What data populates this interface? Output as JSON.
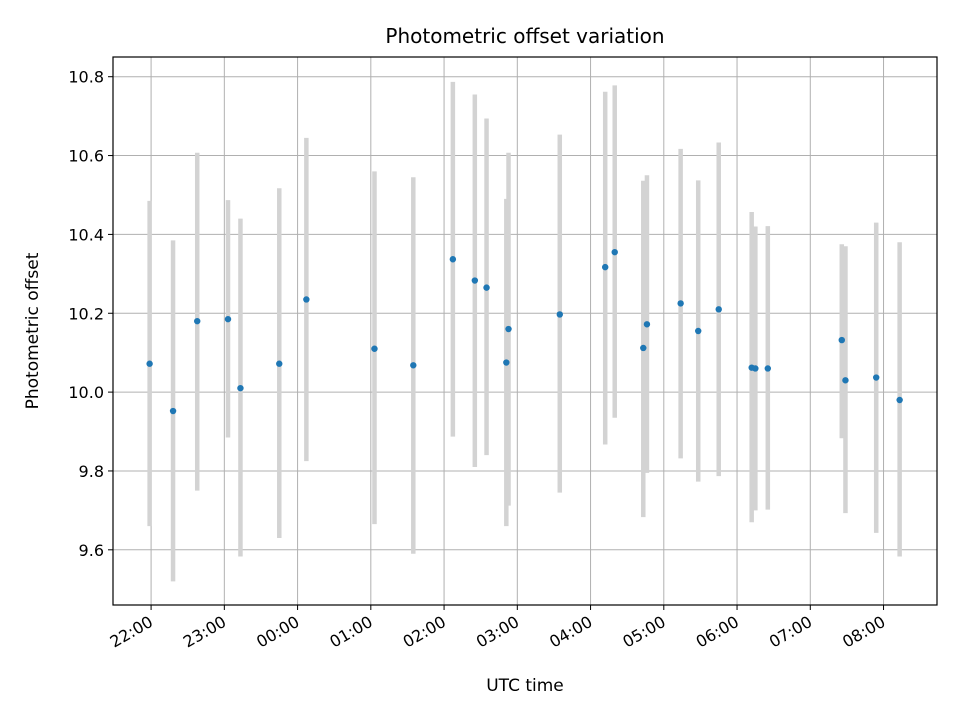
{
  "chart_data": {
    "type": "scatter",
    "title": "Photometric offset variation",
    "xlabel": "UTC time",
    "ylabel": "Photometric offset",
    "x_axis": {
      "unit": "hours",
      "range": [
        21.48,
        32.73
      ],
      "tick_values": [
        22,
        23,
        24,
        25,
        26,
        27,
        28,
        29,
        30,
        31,
        32
      ],
      "tick_labels": [
        "22:00",
        "23:00",
        "00:00",
        "01:00",
        "02:00",
        "03:00",
        "04:00",
        "05:00",
        "06:00",
        "07:00",
        "08:00"
      ]
    },
    "y_axis": {
      "range": [
        9.46,
        10.85
      ],
      "tick_values": [
        9.6,
        9.8,
        10.0,
        10.2,
        10.4,
        10.6,
        10.8
      ],
      "tick_labels": [
        "9.6",
        "9.8",
        "10.0",
        "10.2",
        "10.4",
        "10.6",
        "10.8"
      ]
    },
    "grid": true,
    "series": [
      {
        "marker_color": "#1f77b4",
        "errorbar_color": "#d3d3d3",
        "points": [
          {
            "x": 21.98,
            "y": 10.072,
            "low": 9.66,
            "high": 10.485
          },
          {
            "x": 22.3,
            "y": 9.952,
            "low": 9.52,
            "high": 10.385
          },
          {
            "x": 22.63,
            "y": 10.18,
            "low": 9.75,
            "high": 10.607
          },
          {
            "x": 23.05,
            "y": 10.185,
            "low": 9.885,
            "high": 10.487
          },
          {
            "x": 23.22,
            "y": 10.01,
            "low": 9.583,
            "high": 10.44
          },
          {
            "x": 23.75,
            "y": 10.072,
            "low": 9.63,
            "high": 10.517
          },
          {
            "x": 24.12,
            "y": 10.235,
            "low": 9.825,
            "high": 10.645
          },
          {
            "x": 25.05,
            "y": 10.11,
            "low": 9.665,
            "high": 10.56
          },
          {
            "x": 25.58,
            "y": 10.068,
            "low": 9.59,
            "high": 10.545
          },
          {
            "x": 26.12,
            "y": 10.337,
            "low": 9.887,
            "high": 10.787
          },
          {
            "x": 26.42,
            "y": 10.283,
            "low": 9.81,
            "high": 10.755
          },
          {
            "x": 26.58,
            "y": 10.265,
            "low": 9.84,
            "high": 10.694
          },
          {
            "x": 26.85,
            "y": 10.075,
            "low": 9.66,
            "high": 10.49
          },
          {
            "x": 26.88,
            "y": 10.16,
            "low": 9.712,
            "high": 10.607
          },
          {
            "x": 27.58,
            "y": 10.197,
            "low": 9.745,
            "high": 10.653
          },
          {
            "x": 28.2,
            "y": 10.317,
            "low": 9.867,
            "high": 10.762
          },
          {
            "x": 28.33,
            "y": 10.355,
            "low": 9.935,
            "high": 10.778
          },
          {
            "x": 28.72,
            "y": 10.112,
            "low": 9.683,
            "high": 10.536
          },
          {
            "x": 28.77,
            "y": 10.172,
            "low": 9.795,
            "high": 10.55
          },
          {
            "x": 29.23,
            "y": 10.225,
            "low": 9.832,
            "high": 10.617
          },
          {
            "x": 29.47,
            "y": 10.155,
            "low": 9.773,
            "high": 10.537
          },
          {
            "x": 29.75,
            "y": 10.21,
            "low": 9.787,
            "high": 10.633
          },
          {
            "x": 30.2,
            "y": 10.062,
            "low": 9.67,
            "high": 10.457
          },
          {
            "x": 30.25,
            "y": 10.06,
            "low": 9.7,
            "high": 10.42
          },
          {
            "x": 30.42,
            "y": 10.06,
            "low": 9.702,
            "high": 10.421
          },
          {
            "x": 31.43,
            "y": 10.132,
            "low": 9.883,
            "high": 10.375
          },
          {
            "x": 31.48,
            "y": 10.03,
            "low": 9.693,
            "high": 10.37
          },
          {
            "x": 31.9,
            "y": 10.037,
            "low": 9.643,
            "high": 10.43
          },
          {
            "x": 32.22,
            "y": 9.98,
            "low": 9.583,
            "high": 10.38
          }
        ]
      }
    ]
  }
}
